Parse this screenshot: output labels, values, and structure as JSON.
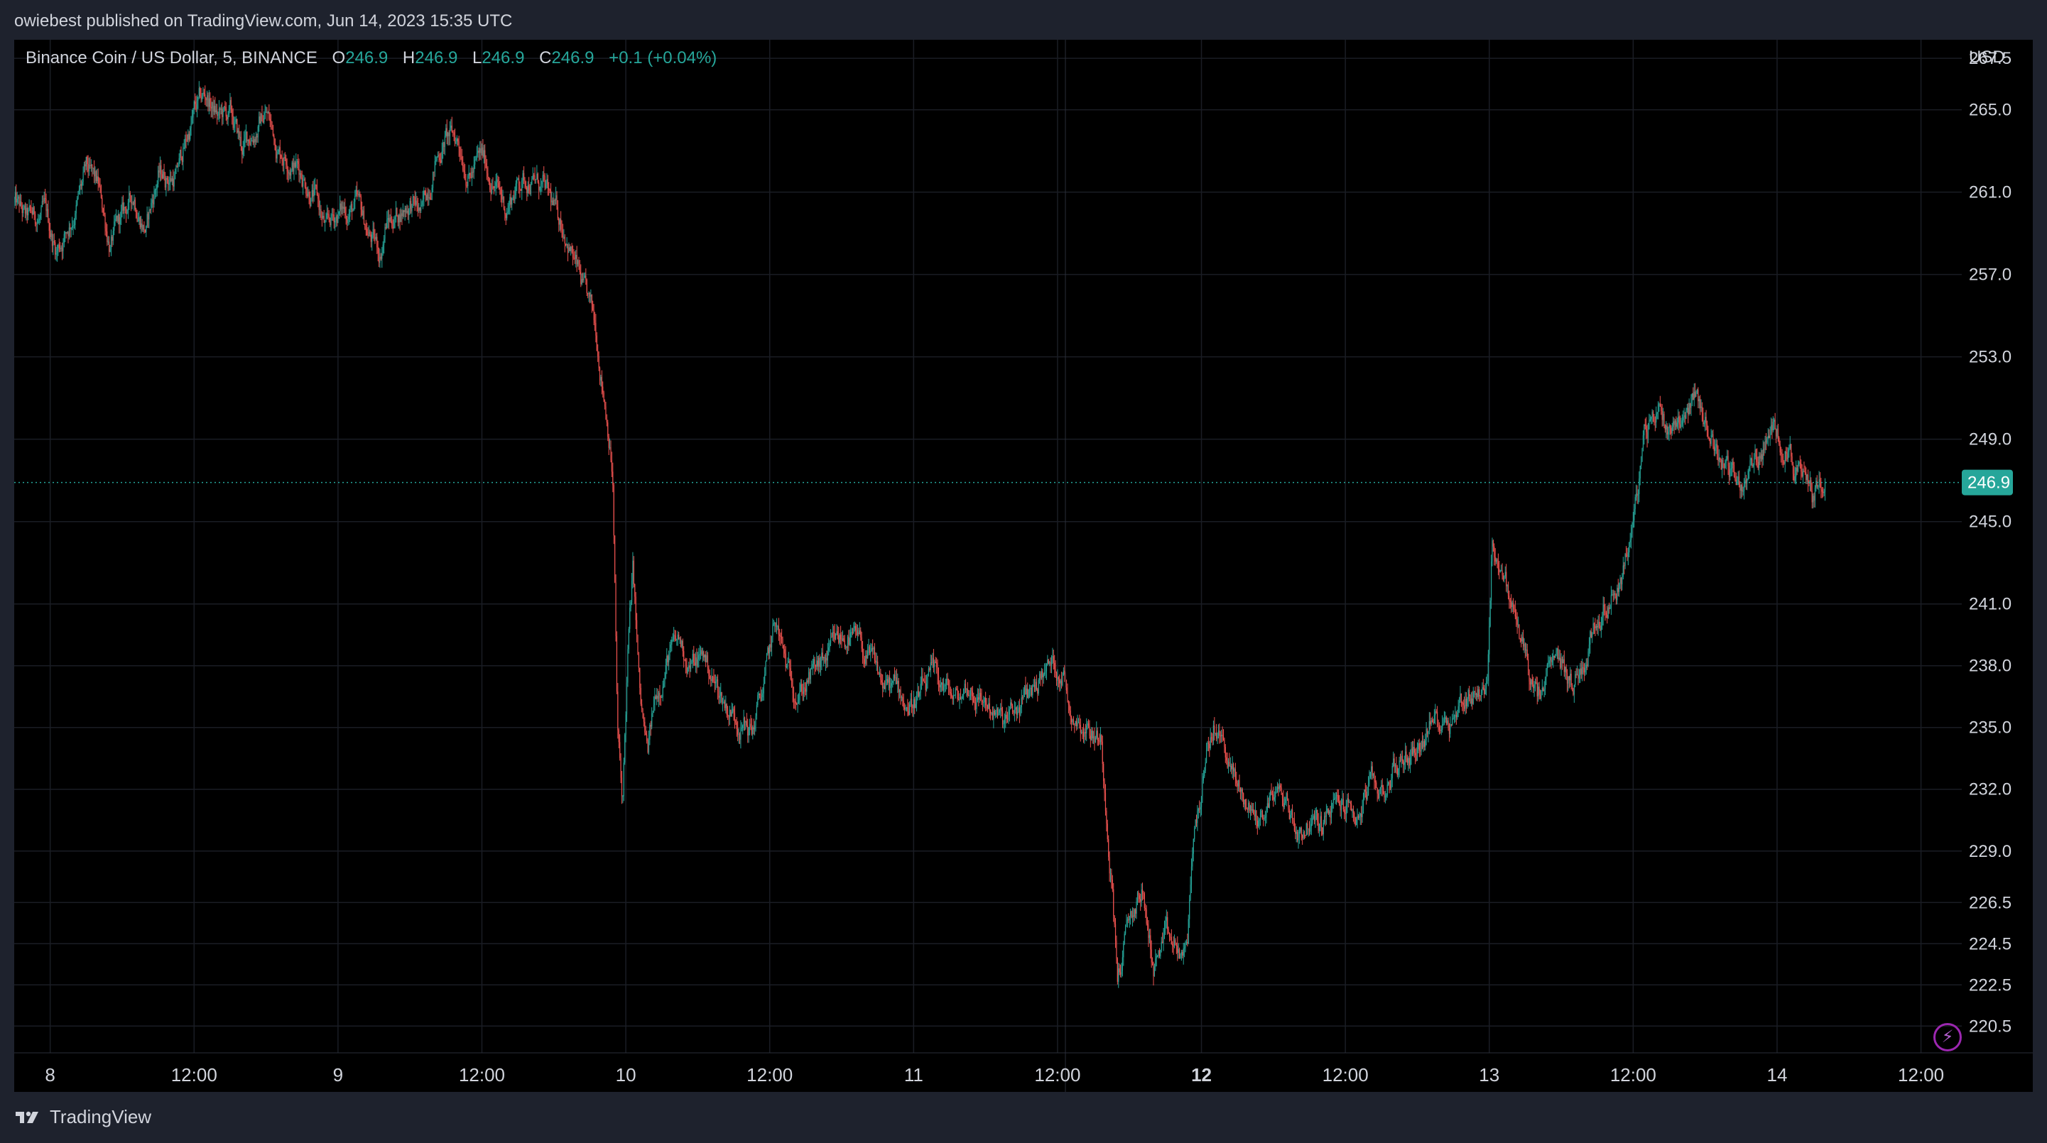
{
  "header": {
    "published_text": "owiebest published on TradingView.com, Jun 14, 2023 15:35 UTC"
  },
  "legend": {
    "symbol": "Binance Coin / US Dollar, 5, BINANCE",
    "o_label": "O",
    "o_value": "246.9",
    "h_label": "H",
    "h_value": "246.9",
    "l_label": "L",
    "l_value": "246.9",
    "c_label": "C",
    "c_value": "246.9",
    "change": "+0.1 (+0.04%)"
  },
  "footer": {
    "brand": "TradingView"
  },
  "colors": {
    "up": "#26a69a",
    "down": "#ef5350",
    "price_tag": "#26a69a",
    "grid": "#1a1d24",
    "axis_text": "#d1d4dc"
  },
  "icons": {
    "bolt": "lightning-bolt-icon",
    "logo": "tradingview-logo-icon"
  },
  "chart_data": {
    "type": "candlestick",
    "symbol": "Binance Coin / US Dollar",
    "interval": "5",
    "exchange": "BINANCE",
    "currency": "USD",
    "y_axis_label": "USD",
    "ylim": [
      219.2,
      268.4
    ],
    "y_ticks": [
      267.5,
      265.0,
      261.0,
      257.0,
      253.0,
      249.0,
      245.0,
      241.0,
      238.0,
      235.0,
      232.0,
      229.0,
      226.5,
      224.5,
      222.5,
      220.5
    ],
    "x_ticks": [
      {
        "label": "8",
        "t": 0,
        "bold": false
      },
      {
        "label": "12:00",
        "t": 12,
        "bold": false
      },
      {
        "label": "9",
        "t": 24,
        "bold": false
      },
      {
        "label": "12:00",
        "t": 36,
        "bold": false
      },
      {
        "label": "10",
        "t": 48,
        "bold": false
      },
      {
        "label": "12:00",
        "t": 60,
        "bold": false
      },
      {
        "label": "11",
        "t": 72,
        "bold": false
      },
      {
        "label": "12:00",
        "t": 84,
        "bold": false
      },
      {
        "label": "12",
        "t": 96,
        "bold": true
      },
      {
        "label": "12:00",
        "t": 108,
        "bold": false
      },
      {
        "label": "13",
        "t": 120,
        "bold": false
      },
      {
        "label": "12:00",
        "t": 132,
        "bold": false
      },
      {
        "label": "14",
        "t": 144,
        "bold": false
      },
      {
        "label": "12:00",
        "t": 156,
        "bold": false
      }
    ],
    "x_range_hours": [
      -3,
      159.4
    ],
    "last_price": 246.9,
    "last_price_label": "246.9",
    "price_path": [
      [
        -3,
        260.5
      ],
      [
        -2,
        259.5
      ],
      [
        -0.5,
        259.8
      ],
      [
        0.5,
        258.2
      ],
      [
        1.5,
        259.4
      ],
      [
        3,
        261.8
      ],
      [
        4,
        261.0
      ],
      [
        5,
        258.5
      ],
      [
        6,
        259.6
      ],
      [
        7,
        260.8
      ],
      [
        8,
        259.3
      ],
      [
        9,
        261.8
      ],
      [
        10.5,
        261.8
      ],
      [
        12,
        264.8
      ],
      [
        13,
        265.6
      ],
      [
        14,
        264.6
      ],
      [
        15,
        264.6
      ],
      [
        16,
        263.0
      ],
      [
        17,
        264.0
      ],
      [
        18,
        264.9
      ],
      [
        19,
        263.2
      ],
      [
        20,
        262.8
      ],
      [
        21,
        262.0
      ],
      [
        22,
        261.0
      ],
      [
        23,
        259.0
      ],
      [
        24,
        260.0
      ],
      [
        25.5,
        260.3
      ],
      [
        26.5,
        259.0
      ],
      [
        27.5,
        258.0
      ],
      [
        28,
        259.5
      ],
      [
        29,
        260.0
      ],
      [
        30,
        260.6
      ],
      [
        31,
        259.8
      ],
      [
        32,
        262.5
      ],
      [
        33,
        263.7
      ],
      [
        34,
        263.5
      ],
      [
        35,
        262.0
      ],
      [
        36,
        262.6
      ],
      [
        37,
        261.5
      ],
      [
        38,
        260.2
      ],
      [
        39,
        261.5
      ],
      [
        40,
        261.8
      ],
      [
        41,
        261.2
      ],
      [
        42,
        260.0
      ],
      [
        43,
        259.2
      ],
      [
        44.5,
        256.0
      ],
      [
        45.5,
        254.2
      ],
      [
        46.5,
        250.0
      ],
      [
        46.9,
        247.5
      ],
      [
        47.3,
        235.0
      ],
      [
        47.7,
        231.0
      ],
      [
        48.2,
        239.0
      ],
      [
        48.6,
        242.5
      ],
      [
        49.2,
        236.0
      ],
      [
        49.8,
        233.5
      ],
      [
        50.5,
        236.5
      ],
      [
        51.5,
        238.5
      ],
      [
        52.5,
        239.0
      ],
      [
        53.5,
        238.0
      ],
      [
        54.5,
        238.5
      ],
      [
        55.5,
        237.0
      ],
      [
        56.5,
        236.0
      ],
      [
        57.5,
        235.5
      ],
      [
        58.5,
        234.8
      ],
      [
        59.5,
        237.0
      ],
      [
        60.5,
        240.0
      ],
      [
        61.5,
        237.5
      ],
      [
        62.5,
        237.0
      ],
      [
        63.5,
        237.5
      ],
      [
        64.5,
        238.0
      ],
      [
        65.5,
        238.8
      ],
      [
        66.5,
        239.5
      ],
      [
        67.5,
        238.8
      ],
      [
        68.5,
        238.0
      ],
      [
        69.5,
        237.0
      ],
      [
        70.5,
        236.8
      ],
      [
        71.5,
        236.2
      ],
      [
        72.5,
        236.5
      ],
      [
        73.5,
        237.2
      ],
      [
        74.5,
        237.0
      ],
      [
        75.5,
        236.2
      ],
      [
        76.5,
        237.0
      ],
      [
        77.5,
        236.5
      ],
      [
        78.5,
        236.0
      ],
      [
        79.5,
        235.0
      ],
      [
        80.5,
        235.6
      ],
      [
        81.5,
        236.5
      ],
      [
        82.5,
        237.5
      ],
      [
        83.5,
        238.0
      ],
      [
        84.5,
        237.8
      ],
      [
        85,
        236.0
      ],
      [
        86,
        235.5
      ],
      [
        87,
        234.8
      ],
      [
        87.6,
        234.5
      ],
      [
        88.5,
        228.0
      ],
      [
        89,
        223.0
      ],
      [
        90,
        225.5
      ],
      [
        91,
        227.0
      ],
      [
        92,
        223.5
      ],
      [
        93,
        224.5
      ],
      [
        94,
        224.0
      ],
      [
        94.8,
        223.8
      ],
      [
        95.2,
        229.0
      ],
      [
        96,
        232.0
      ],
      [
        97,
        235.0
      ],
      [
        98,
        234.0
      ],
      [
        99,
        232.0
      ],
      [
        100,
        231.0
      ],
      [
        101,
        230.5
      ],
      [
        102,
        232.0
      ],
      [
        103,
        231.5
      ],
      [
        104,
        230.0
      ],
      [
        105,
        230.5
      ],
      [
        106,
        230.2
      ],
      [
        107,
        231.0
      ],
      [
        108,
        231.2
      ],
      [
        109,
        230.6
      ],
      [
        110,
        232.0
      ],
      [
        111,
        231.8
      ],
      [
        112,
        233.0
      ],
      [
        113,
        233.5
      ],
      [
        114,
        234.2
      ],
      [
        115,
        235.0
      ],
      [
        116,
        235.6
      ],
      [
        117,
        235.8
      ],
      [
        118,
        236.5
      ],
      [
        119,
        237.0
      ],
      [
        119.8,
        236.5
      ],
      [
        120.2,
        244.0
      ],
      [
        121,
        243.0
      ],
      [
        122,
        240.5
      ],
      [
        123,
        238.5
      ],
      [
        124,
        236.0
      ],
      [
        125,
        237.5
      ],
      [
        126,
        238.0
      ],
      [
        127,
        237.0
      ],
      [
        128,
        238.5
      ],
      [
        129,
        240.5
      ],
      [
        130,
        241.5
      ],
      [
        131,
        242.5
      ],
      [
        132,
        245.0
      ],
      [
        133,
        249.0
      ],
      [
        134,
        250.5
      ],
      [
        135,
        249.8
      ],
      [
        136,
        250.2
      ],
      [
        137,
        251.2
      ],
      [
        138,
        250.0
      ],
      [
        139,
        248.5
      ],
      [
        140,
        247.5
      ],
      [
        141,
        246.8
      ],
      [
        142,
        247.6
      ],
      [
        143,
        248.8
      ],
      [
        144,
        249.5
      ],
      [
        145,
        248.6
      ],
      [
        146,
        247.0
      ],
      [
        147,
        246.2
      ],
      [
        147.6,
        247.2
      ],
      [
        148,
        246.9
      ]
    ]
  }
}
